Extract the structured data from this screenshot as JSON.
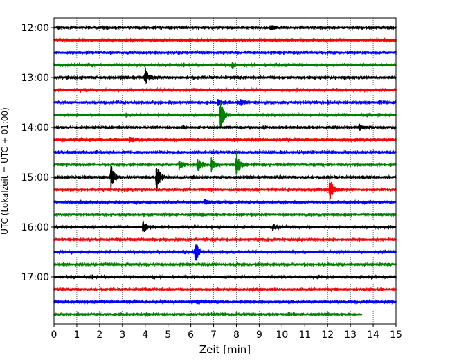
{
  "chart_data": {
    "type": "line",
    "title": "",
    "xlabel": "Zeit  [min]",
    "ylabel": "UTC (Lokalzeit = UTC + 01:00)",
    "xlim": [
      0,
      15
    ],
    "x_ticks": [
      "0",
      "1",
      "2",
      "3",
      "4",
      "5",
      "6",
      "7",
      "8",
      "9",
      "10",
      "11",
      "12",
      "13",
      "14",
      "15"
    ],
    "y_tick_labels": [
      "12:00",
      "13:00",
      "14:00",
      "15:00",
      "16:00",
      "17:00"
    ],
    "grid": "vertical dotted",
    "trace_colors": [
      "#000000",
      "#ff0000",
      "#0000ff",
      "#008000"
    ],
    "traces": [
      {
        "start": "12:00",
        "end_min": 15,
        "events": [
          {
            "t": 9.5,
            "amp": 0.3
          }
        ]
      },
      {
        "start": "12:15",
        "end_min": 15,
        "events": []
      },
      {
        "start": "12:30",
        "end_min": 15,
        "events": []
      },
      {
        "start": "12:45",
        "end_min": 15,
        "events": [
          {
            "t": 7.8,
            "amp": 0.2
          }
        ]
      },
      {
        "start": "13:00",
        "end_min": 15,
        "events": [
          {
            "t": 4.0,
            "amp": 1.0
          }
        ]
      },
      {
        "start": "13:15",
        "end_min": 15,
        "events": []
      },
      {
        "start": "13:30",
        "end_min": 15,
        "events": [
          {
            "t": 7.2,
            "amp": 0.3
          },
          {
            "t": 8.2,
            "amp": 0.3
          }
        ]
      },
      {
        "start": "13:45",
        "end_min": 15,
        "events": [
          {
            "t": 7.3,
            "amp": 1.6
          }
        ]
      },
      {
        "start": "14:00",
        "end_min": 15,
        "events": [
          {
            "t": 13.4,
            "amp": 0.3
          }
        ]
      },
      {
        "start": "14:15",
        "end_min": 15,
        "events": [
          {
            "t": 3.3,
            "amp": 0.4
          }
        ]
      },
      {
        "start": "14:30",
        "end_min": 15,
        "events": []
      },
      {
        "start": "14:45",
        "end_min": 15,
        "events": [
          {
            "t": 5.5,
            "amp": 0.5
          },
          {
            "t": 6.3,
            "amp": 0.8
          },
          {
            "t": 6.9,
            "amp": 0.7
          },
          {
            "t": 8.0,
            "amp": 1.3
          }
        ]
      },
      {
        "start": "15:00",
        "end_min": 15,
        "events": [
          {
            "t": 2.5,
            "amp": 1.4
          },
          {
            "t": 4.5,
            "amp": 1.6
          }
        ]
      },
      {
        "start": "15:15",
        "end_min": 15,
        "events": [
          {
            "t": 12.1,
            "amp": 1.3
          }
        ]
      },
      {
        "start": "15:30",
        "end_min": 15,
        "events": [
          {
            "t": 6.6,
            "amp": 0.3
          }
        ]
      },
      {
        "start": "15:45",
        "end_min": 15,
        "events": []
      },
      {
        "start": "16:00",
        "end_min": 15,
        "events": [
          {
            "t": 3.9,
            "amp": 0.7
          },
          {
            "t": 9.6,
            "amp": 0.4
          }
        ]
      },
      {
        "start": "16:15",
        "end_min": 15,
        "events": []
      },
      {
        "start": "16:30",
        "end_min": 15,
        "events": [
          {
            "t": 6.2,
            "amp": 1.1
          }
        ]
      },
      {
        "start": "16:45",
        "end_min": 15,
        "events": []
      },
      {
        "start": "17:00",
        "end_min": 15,
        "events": []
      },
      {
        "start": "17:15",
        "end_min": 15,
        "events": []
      },
      {
        "start": "17:30",
        "end_min": 15,
        "events": [
          {
            "t": 6.3,
            "amp": 0.2
          }
        ]
      },
      {
        "start": "17:45",
        "end_min": 13.5,
        "events": []
      }
    ]
  }
}
